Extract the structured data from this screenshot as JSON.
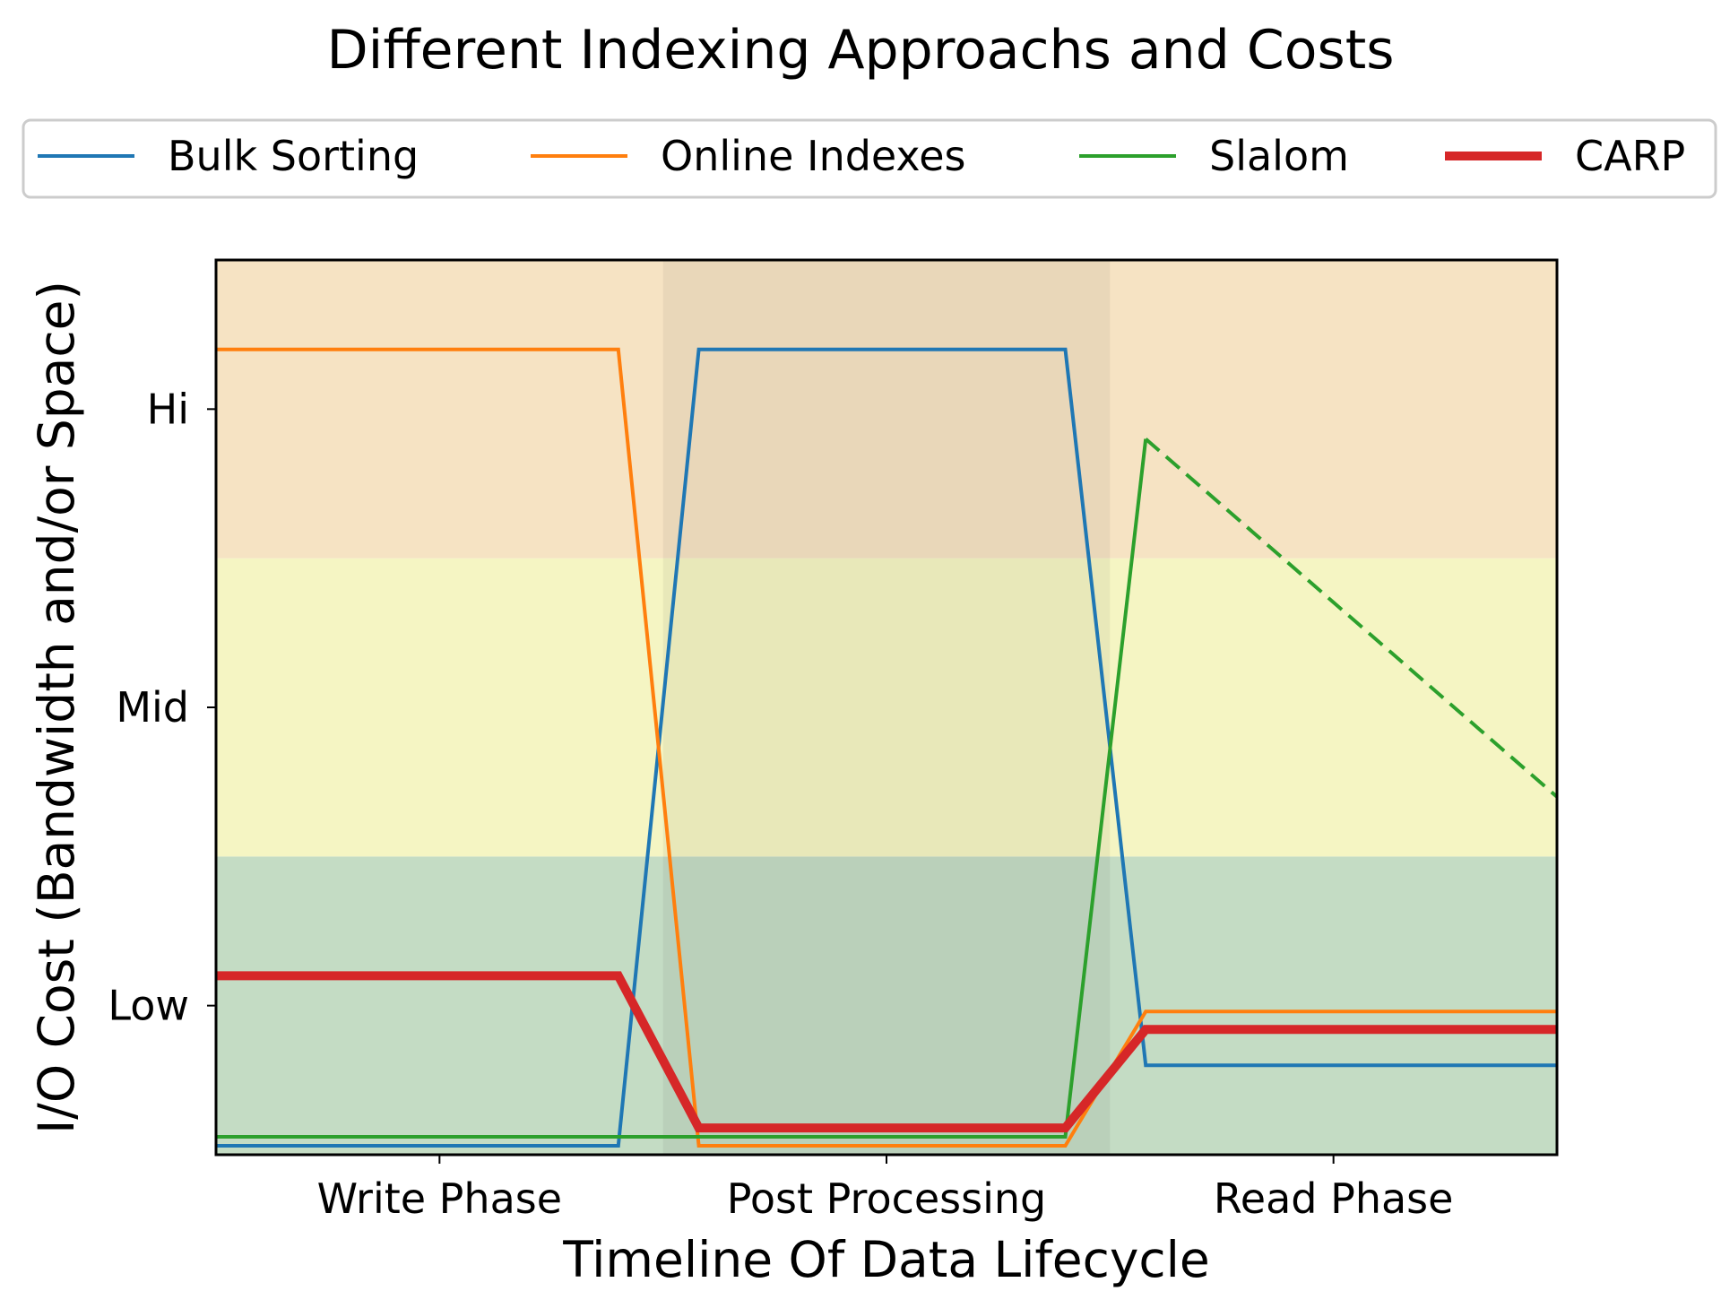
{
  "chart_data": {
    "type": "line",
    "title": "Different Indexing Approachs and Costs",
    "xlabel": "Timeline Of Data Lifecycle",
    "ylabel": "I/O Cost (Bandwidth and/or Space)",
    "xlim": [
      0,
      3
    ],
    "ylim": [
      0,
      3
    ],
    "x_ticks": [
      {
        "value": 0.5,
        "label": "Write Phase"
      },
      {
        "value": 1.5,
        "label": "Post Processing"
      },
      {
        "value": 2.5,
        "label": "Read Phase"
      }
    ],
    "y_ticks": [
      {
        "value": 0.5,
        "label": "Low"
      },
      {
        "value": 1.5,
        "label": "Mid"
      },
      {
        "value": 2.5,
        "label": "Hi"
      }
    ],
    "cost_bands": [
      {
        "y0": 0,
        "y1": 1,
        "color": "#c4dcc4"
      },
      {
        "y0": 1,
        "y1": 2,
        "color": "#f5f5c3"
      },
      {
        "y0": 2,
        "y1": 3,
        "color": "#f6e3c3"
      }
    ],
    "phase_shade": {
      "x0": 1,
      "x1": 2,
      "color": "#000000",
      "opacity": 0.05
    },
    "legend": {
      "placement": "top",
      "columns": 4
    },
    "grid": false,
    "series": [
      {
        "name": "Bulk Sorting",
        "color": "#1f77b4",
        "width": 4,
        "points": [
          [
            0,
            0.03
          ],
          [
            0.9,
            0.03
          ],
          [
            1.08,
            2.7
          ],
          [
            1.9,
            2.7
          ],
          [
            2.08,
            0.3
          ],
          [
            3,
            0.3
          ]
        ]
      },
      {
        "name": "Online Indexes",
        "color": "#ff7f0e",
        "width": 4,
        "points": [
          [
            0,
            2.7
          ],
          [
            0.9,
            2.7
          ],
          [
            1.08,
            0.03
          ],
          [
            1.9,
            0.03
          ],
          [
            2.08,
            0.48
          ],
          [
            3,
            0.48
          ]
        ]
      },
      {
        "name": "Slalom",
        "color": "#2ca02c",
        "width": 4,
        "points": [
          [
            0,
            0.06
          ],
          [
            1.9,
            0.06
          ],
          [
            2.08,
            2.4
          ]
        ],
        "dashed_points": [
          [
            2.08,
            2.4
          ],
          [
            3,
            1.2
          ]
        ]
      },
      {
        "name": "CARP",
        "color": "#d62728",
        "width": 10,
        "points": [
          [
            0,
            0.6
          ],
          [
            0.9,
            0.6
          ],
          [
            1.08,
            0.09
          ],
          [
            1.9,
            0.09
          ],
          [
            2.08,
            0.42
          ],
          [
            3,
            0.42
          ]
        ]
      }
    ]
  }
}
